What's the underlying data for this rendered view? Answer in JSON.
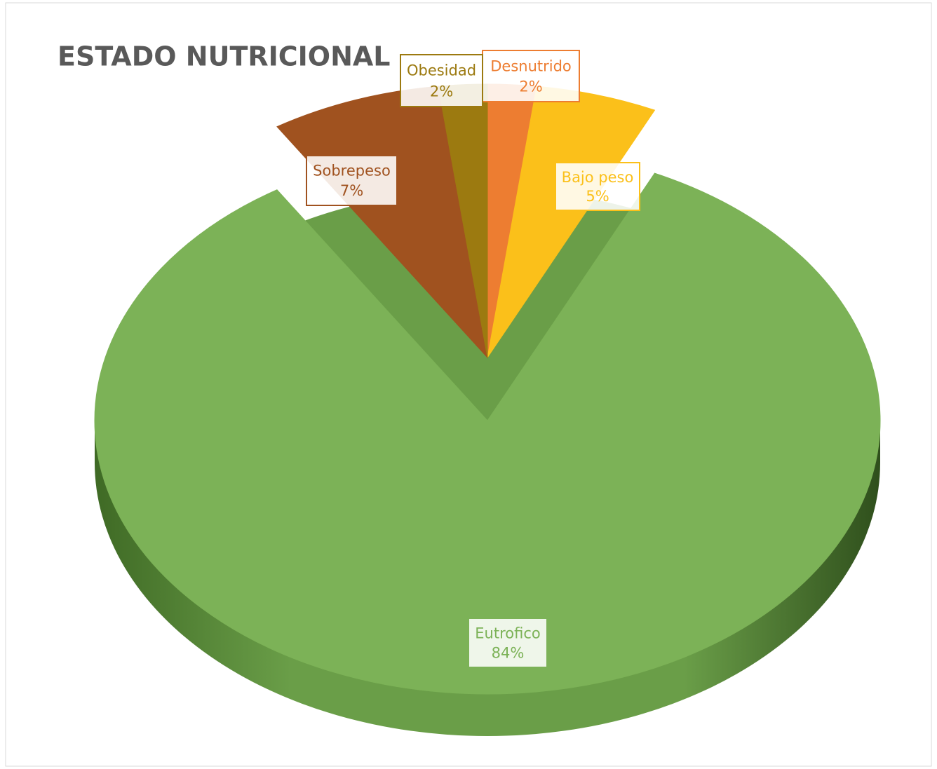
{
  "chart_data": {
    "type": "pie",
    "title": "ESTADO NUTRICIONAL",
    "categories": [
      "Desnutrido",
      "Bajo peso",
      "Eutrofico",
      "Sobrepeso",
      "Obesidad"
    ],
    "values": [
      2,
      5,
      84,
      7,
      2
    ],
    "value_labels": [
      "2%",
      "5%",
      "84%",
      "7%",
      "2%"
    ],
    "colors": [
      "#ed7d31",
      "#fbc01a",
      "#7cb257",
      "#a0521f",
      "#9c7a10"
    ]
  }
}
